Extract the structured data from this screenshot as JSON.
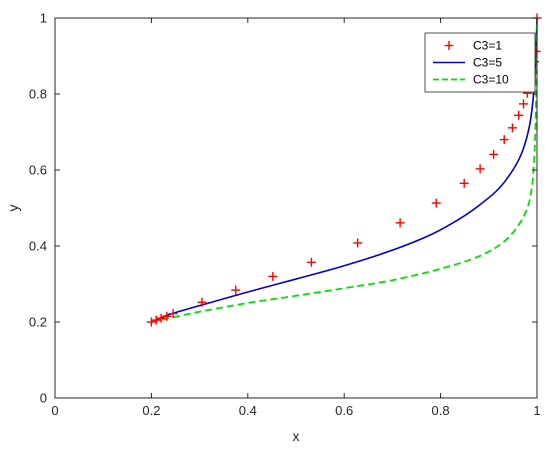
{
  "chart_data": {
    "type": "line",
    "title": "",
    "xlabel": "x",
    "ylabel": "y",
    "xlim": [
      0,
      1
    ],
    "ylim": [
      0,
      1
    ],
    "xticks": [
      0,
      0.2,
      0.4,
      0.6,
      0.8,
      1
    ],
    "yticks": [
      0,
      0.2,
      0.4,
      0.6,
      0.8,
      1
    ],
    "xtick_labels": [
      "0",
      "0.2",
      "0.4",
      "0.6",
      "0.8",
      "1"
    ],
    "ytick_labels": [
      "0",
      "0.2",
      "0.4",
      "0.6",
      "0.8",
      "1"
    ],
    "grid": false,
    "legend_position": "top-right",
    "series": [
      {
        "name": "C3=1",
        "style": "markers",
        "marker": "plus",
        "color": "#ff0000",
        "x": [
          0.2,
          0.21,
          0.22,
          0.232,
          0.245,
          0.305,
          0.375,
          0.452,
          0.532,
          0.628,
          0.716,
          0.791,
          0.849,
          0.882,
          0.91,
          0.932,
          0.949,
          0.962,
          0.972,
          0.98,
          0.986,
          0.991,
          0.995,
          0.998,
          1.0
        ],
        "y": [
          0.2,
          0.205,
          0.21,
          0.215,
          0.222,
          0.252,
          0.284,
          0.32,
          0.357,
          0.408,
          0.461,
          0.513,
          0.565,
          0.603,
          0.641,
          0.68,
          0.711,
          0.744,
          0.774,
          0.802,
          0.83,
          0.858,
          0.885,
          0.912,
          1.0
        ]
      },
      {
        "name": "C3=5",
        "style": "solid",
        "color": "#0000cc",
        "x": [
          0.2,
          0.24,
          0.3,
          0.4,
          0.5,
          0.6,
          0.7,
          0.78,
          0.84,
          0.88,
          0.92,
          0.95,
          0.97,
          0.985,
          0.993,
          0.997,
          1.0
        ],
        "y": [
          0.2,
          0.221,
          0.243,
          0.279,
          0.313,
          0.348,
          0.389,
          0.43,
          0.472,
          0.507,
          0.55,
          0.6,
          0.65,
          0.72,
          0.8,
          0.88,
          1.0
        ]
      },
      {
        "name": "C3=10",
        "style": "dashed",
        "color": "#00e000",
        "x": [
          0.2,
          0.3,
          0.4,
          0.5,
          0.6,
          0.7,
          0.8,
          0.88,
          0.93,
          0.96,
          0.98,
          0.99,
          0.995,
          0.998,
          1.0
        ],
        "y": [
          0.2,
          0.227,
          0.25,
          0.269,
          0.289,
          0.31,
          0.34,
          0.373,
          0.41,
          0.452,
          0.5,
          0.56,
          0.65,
          0.78,
          1.0
        ]
      }
    ]
  }
}
